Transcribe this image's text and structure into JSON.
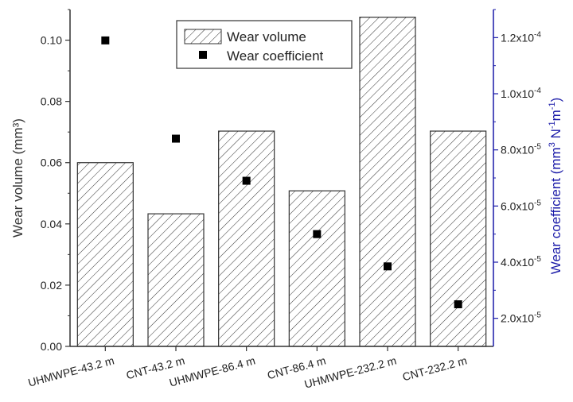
{
  "chart_data": {
    "type": "bar",
    "categories": [
      "UHMWPE-43.2 m",
      "CNT-43.2 m",
      "UHMWPE-86.4 m",
      "CNT-86.4 m",
      "UHMWPE-232.2 m",
      "CNT-232.2 m"
    ],
    "series": [
      {
        "name": "Wear volume",
        "type": "bar",
        "axis": "left",
        "values": [
          0.06,
          0.0433,
          0.0703,
          0.0508,
          0.1075,
          0.0703
        ]
      },
      {
        "name": "Wear coefficient",
        "type": "scatter",
        "axis": "right",
        "values": [
          0.000119,
          8.4e-05,
          6.9e-05,
          5e-05,
          3.85e-05,
          2.5e-05
        ]
      }
    ],
    "ylabel": "Wear volume (mm³)",
    "y2label_parts": [
      "Wear coefficient (mm",
      "3",
      " N",
      "-1",
      "m",
      "-1",
      ")"
    ],
    "ylim": [
      0,
      0.11
    ],
    "y2lim": [
      1e-05,
      0.00013
    ],
    "left_ticks": [
      "0.00",
      "0.02",
      "0.04",
      "0.06",
      "0.08",
      "0.10"
    ],
    "left_tick_values": [
      0,
      0.02,
      0.04,
      0.06,
      0.08,
      0.1
    ],
    "right_ticks": [
      {
        "value": 2e-05,
        "mantissa": "2.0x10",
        "exp": "-5"
      },
      {
        "value": 4e-05,
        "mantissa": "4.0x10",
        "exp": "-5"
      },
      {
        "value": 6e-05,
        "mantissa": "6.0x10",
        "exp": "-5"
      },
      {
        "value": 8e-05,
        "mantissa": "8.0x10",
        "exp": "-5"
      },
      {
        "value": 0.0001,
        "mantissa": "1.0x10",
        "exp": "-4"
      },
      {
        "value": 0.00012,
        "mantissa": "1.2x10",
        "exp": "-4"
      }
    ],
    "legend": {
      "placement": "top-center"
    },
    "grid": false,
    "colors": {
      "left_axis": "#333333",
      "right_axis": "#1a1aa8",
      "marker": "#000000",
      "bar_hatch": "#333333"
    }
  }
}
